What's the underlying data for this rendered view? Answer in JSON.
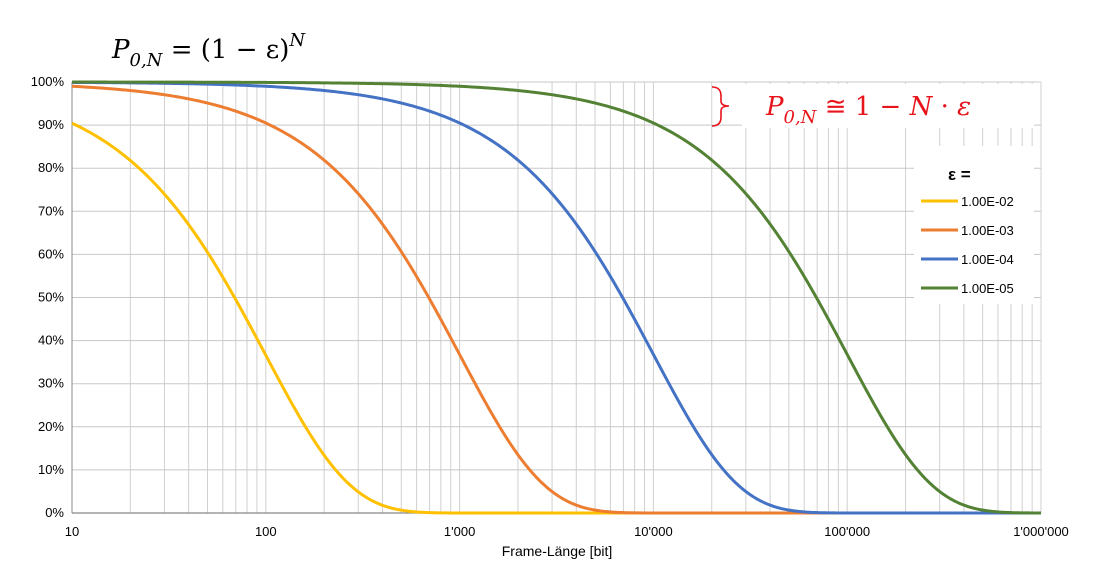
{
  "chart_data": {
    "type": "line",
    "x_scale": "log",
    "xlim": [
      10,
      1000000
    ],
    "ylim": [
      0,
      1
    ],
    "xlabel": "Frame-Länge [bit]",
    "ylabel": "",
    "x_tick_labels": [
      {
        "value": 10,
        "label": "10"
      },
      {
        "value": 100,
        "label": "100"
      },
      {
        "value": 1000,
        "label": "1'000"
      },
      {
        "value": 10000,
        "label": "10'000"
      },
      {
        "value": 100000,
        "label": "100'000"
      },
      {
        "value": 1000000,
        "label": "1'000'000"
      }
    ],
    "y_tick_labels": [
      {
        "value": 0,
        "label": "0%"
      },
      {
        "value": 0.1,
        "label": "10%"
      },
      {
        "value": 0.2,
        "label": "20%"
      },
      {
        "value": 0.3,
        "label": "30%"
      },
      {
        "value": 0.4,
        "label": "40%"
      },
      {
        "value": 0.5,
        "label": "50%"
      },
      {
        "value": 0.6,
        "label": "60%"
      },
      {
        "value": 0.7,
        "label": "70%"
      },
      {
        "value": 0.8,
        "label": "80%"
      },
      {
        "value": 0.9,
        "label": "90%"
      },
      {
        "value": 1.0,
        "label": "100%"
      }
    ],
    "grid": true,
    "legend_title": "ε =",
    "legend_position": "right",
    "series": [
      {
        "name": "1.00E-02",
        "epsilon": 0.01,
        "color": "#FFC000",
        "x": [
          10,
          20,
          50,
          100,
          200,
          300,
          500,
          700,
          1000,
          2000,
          10000,
          1000000
        ],
        "y": [
          0.904,
          0.818,
          0.605,
          0.366,
          0.134,
          0.049,
          0.0066,
          0.0009,
          4e-05,
          0,
          0,
          0
        ]
      },
      {
        "name": "1.00E-03",
        "epsilon": 0.001,
        "color": "#ED7D31",
        "x": [
          10,
          100,
          200,
          500,
          1000,
          2000,
          3000,
          5000,
          7000,
          10000,
          100000,
          1000000
        ],
        "y": [
          0.99,
          0.905,
          0.819,
          0.606,
          0.368,
          0.135,
          0.05,
          0.0067,
          0.0009,
          5e-05,
          0,
          0
        ]
      },
      {
        "name": "1.00E-04",
        "epsilon": 0.0001,
        "color": "#4472C4",
        "x": [
          10,
          100,
          1000,
          2000,
          5000,
          10000,
          20000,
          30000,
          50000,
          70000,
          100000,
          1000000
        ],
        "y": [
          0.999,
          0.99,
          0.905,
          0.819,
          0.607,
          0.368,
          0.135,
          0.05,
          0.0067,
          0.0009,
          5e-05,
          0
        ]
      },
      {
        "name": "1.00E-05",
        "epsilon": 1e-05,
        "color": "#548235",
        "x": [
          10,
          1000,
          10000,
          20000,
          50000,
          100000,
          200000,
          300000,
          500000,
          700000,
          1000000
        ],
        "y": [
          1.0,
          0.99,
          0.905,
          0.819,
          0.607,
          0.368,
          0.135,
          0.05,
          0.0067,
          0.0009,
          5e-05
        ]
      }
    ]
  },
  "formula_top": {
    "P": "P",
    "sub": "0,N",
    "rhs": " = (1 − ε)",
    "exp": "N"
  },
  "formula_approx": {
    "P": "P",
    "sub": "0,N",
    "rhs": " ≅ 1 − ",
    "N": "N",
    "dot": " · ",
    "eps": "ε",
    "color": "#E8141B"
  }
}
